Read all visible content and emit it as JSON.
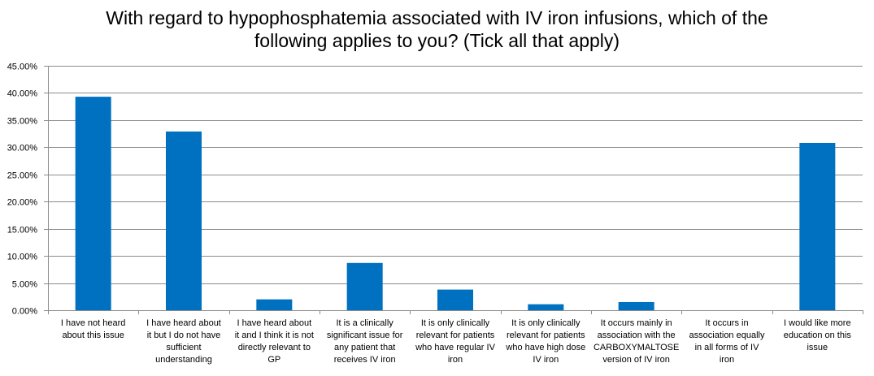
{
  "chart_data": {
    "type": "bar",
    "title_lines": [
      "With regard to hypophosphatemia associated with IV iron infusions, which of the",
      "following applies to you? (Tick all that apply)"
    ],
    "categories": [
      "I have not heard about this issue",
      "I have heard about it but I do not have sufficient understanding",
      "I have heard about it and I think it is not directly relevant to GP",
      "It is a clinically significant issue for any patient that receives IV iron",
      "It is only clinically relevant for patients who have regular IV iron",
      "It is only clinically relevant for patients who have high dose IV iron",
      "It occurs mainly in association with the CARBOXYMALTOSE version of IV iron",
      "It occurs in association equally in all forms of IV iron",
      "I would like more education on this issue"
    ],
    "category_label_lines": [
      [
        "I have not heard",
        "about this issue"
      ],
      [
        "I have heard about",
        "it but I do not have",
        "sufficient",
        "understanding"
      ],
      [
        "I have heard about",
        "it and I think it is not",
        "directly relevant to",
        "GP"
      ],
      [
        "It is a clinically",
        "significant issue for",
        "any patient that",
        "receives IV iron"
      ],
      [
        "It is only clinically",
        "relevant for patients",
        "who have regular IV",
        "iron"
      ],
      [
        "It is only clinically",
        "relevant for patients",
        "who have high dose",
        "IV iron"
      ],
      [
        "It occurs mainly in",
        "association with the",
        "CARBOXYMALTOSE",
        "version of IV iron"
      ],
      [
        "It occurs in",
        "association equally",
        "in all forms of IV",
        "iron"
      ],
      [
        "I would like more",
        "education on this",
        "issue"
      ]
    ],
    "values": [
      39.3,
      32.9,
      2.0,
      8.7,
      3.8,
      1.1,
      1.5,
      0,
      30.8
    ],
    "ylim": [
      0,
      45
    ],
    "yticks": [
      0,
      5,
      10,
      15,
      20,
      25,
      30,
      35,
      40,
      45
    ],
    "ytick_labels": [
      "0.00%",
      "5.00%",
      "10.00%",
      "15.00%",
      "20.00%",
      "25.00%",
      "30.00%",
      "35.00%",
      "40.00%",
      "45.00%"
    ],
    "grid": true,
    "bar_color": "#0070C0",
    "xlabel": "",
    "ylabel": ""
  }
}
